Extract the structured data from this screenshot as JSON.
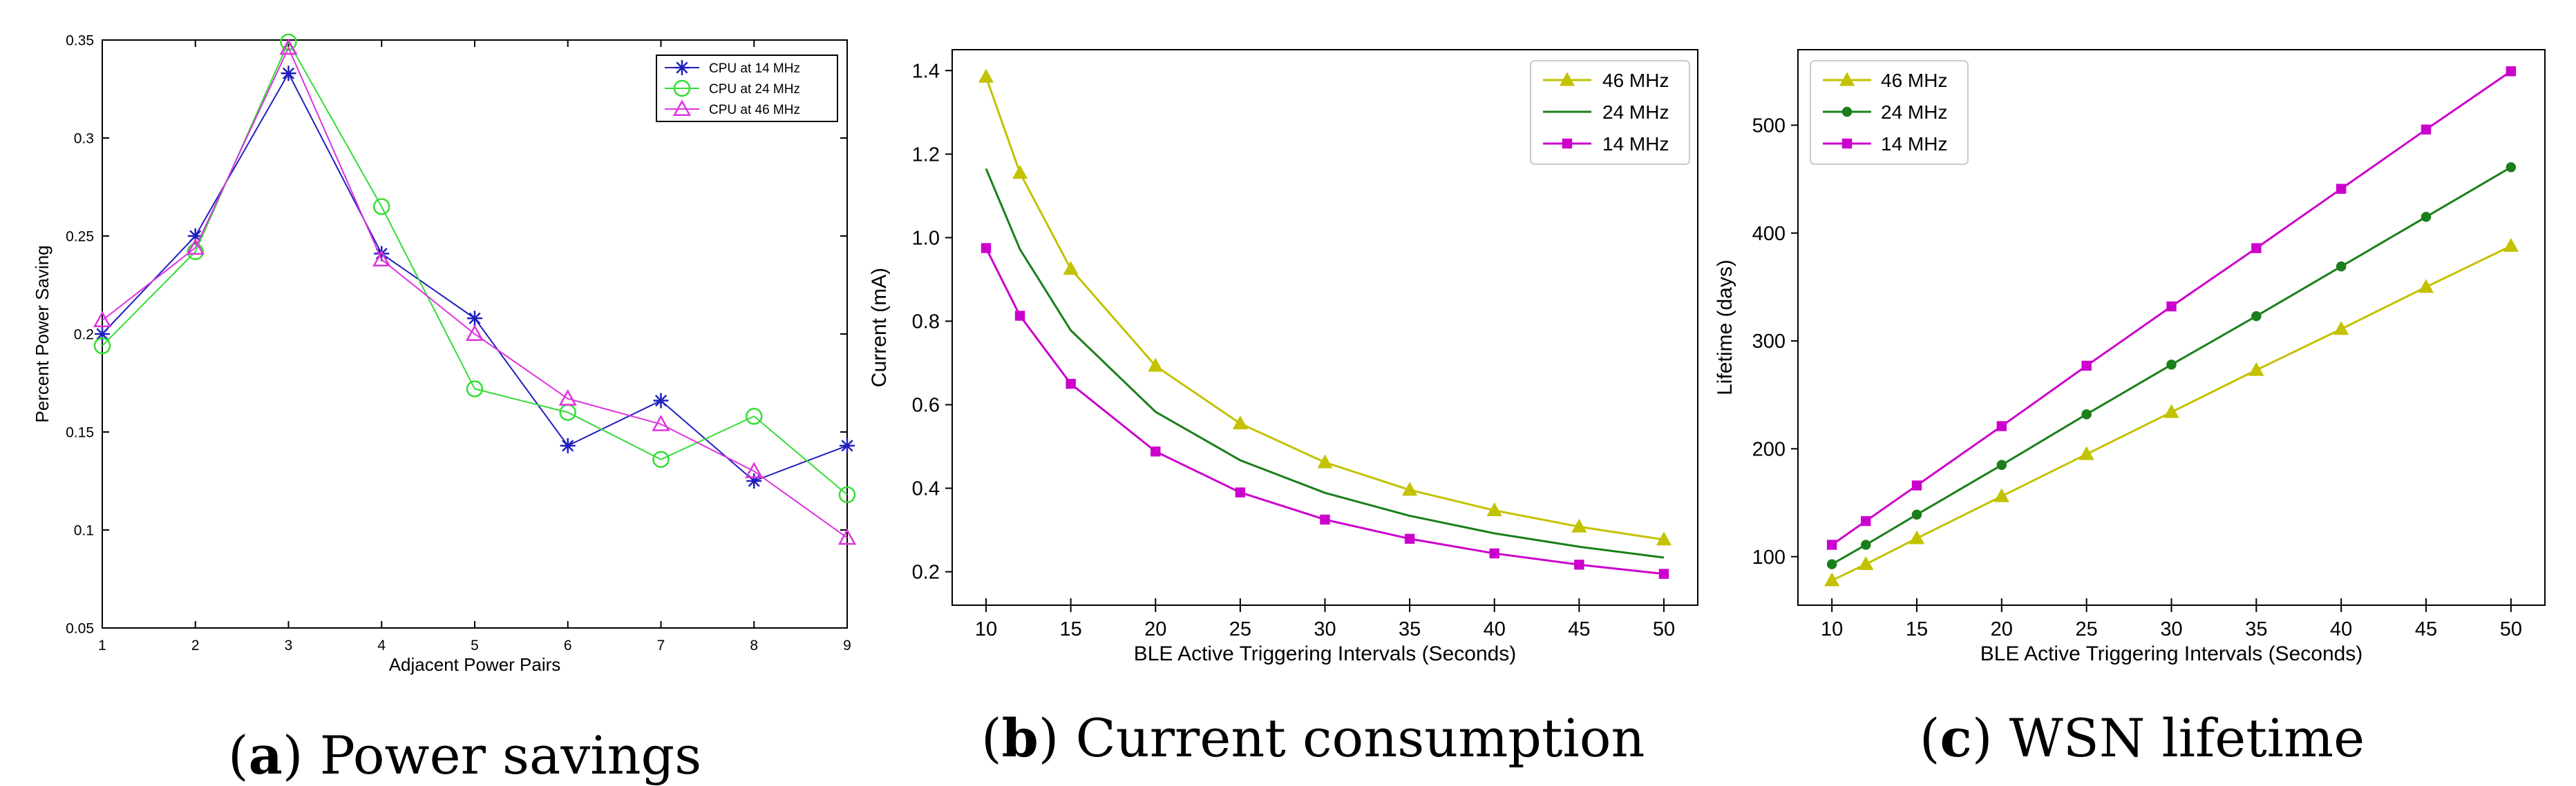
{
  "chart_data": [
    {
      "type": "line",
      "title": "",
      "xlabel": "Adjacent Power Pairs",
      "ylabel": "Percent Power Saving",
      "xlim": [
        1,
        9
      ],
      "ylim": [
        0.05,
        0.35
      ],
      "xticks": [
        1,
        2,
        3,
        4,
        5,
        6,
        7,
        8,
        9
      ],
      "yticks": [
        0.05,
        0.1,
        0.15,
        0.2,
        0.25,
        0.3,
        0.35
      ],
      "ytick_labels": [
        "0.05",
        "0.1",
        "0.15",
        "0.2",
        "0.25",
        "0.3",
        "0.35"
      ],
      "grid": false,
      "legend": "top-right",
      "x": [
        1,
        2,
        3,
        4,
        5,
        6,
        7,
        8,
        9
      ],
      "series": [
        {
          "name": "CPU at 14 MHz",
          "color": "#1f1fbf",
          "marker": "star",
          "values": [
            0.2,
            0.25,
            0.333,
            0.241,
            0.208,
            0.143,
            0.166,
            0.125,
            0.143
          ]
        },
        {
          "name": "CPU at 24 MHz",
          "color": "#33dd33",
          "marker": "circle",
          "values": [
            0.194,
            0.242,
            0.349,
            0.265,
            0.172,
            0.16,
            0.136,
            0.158,
            0.118
          ]
        },
        {
          "name": "CPU at 46 MHz",
          "color": "#dd33dd",
          "marker": "triangle",
          "values": [
            0.207,
            0.244,
            0.346,
            0.238,
            0.2,
            0.167,
            0.154,
            0.13,
            0.096
          ]
        }
      ],
      "caption": {
        "letter": "a",
        "open": "(",
        "close": ")",
        "text": " Power savings"
      }
    },
    {
      "type": "line",
      "title": "",
      "xlabel": "BLE Active Triggering Intervals (Seconds)",
      "ylabel": "Current (mA)",
      "xlim": [
        8,
        52
      ],
      "ylim": [
        0.12,
        1.45
      ],
      "xticks": [
        10,
        15,
        20,
        25,
        30,
        35,
        40,
        45,
        50
      ],
      "yticks": [
        0.2,
        0.4,
        0.6,
        0.8,
        1.0,
        1.2,
        1.4
      ],
      "ytick_labels": [
        "0.2",
        "0.4",
        "0.6",
        "0.8",
        "1.0",
        "1.2",
        "1.4"
      ],
      "grid": false,
      "legend": "top-right",
      "x": [
        10,
        12,
        15,
        20,
        25,
        30,
        35,
        40,
        45,
        50
      ],
      "series": [
        {
          "name": "46 MHz",
          "color": "#c2c200",
          "marker": "triangle",
          "values": [
            1.385,
            1.155,
            0.925,
            0.693,
            0.555,
            0.462,
            0.396,
            0.347,
            0.308,
            0.277
          ]
        },
        {
          "name": "24 MHz",
          "color": "#1a7f1a",
          "marker": "none",
          "values": [
            1.165,
            0.972,
            0.778,
            0.583,
            0.467,
            0.389,
            0.334,
            0.292,
            0.26,
            0.234
          ]
        },
        {
          "name": "14 MHz",
          "color": "#cc00cc",
          "marker": "square",
          "values": [
            0.975,
            0.813,
            0.65,
            0.488,
            0.39,
            0.325,
            0.279,
            0.244,
            0.217,
            0.195
          ]
        }
      ],
      "caption": {
        "letter": "b",
        "open": "(",
        "close": ")",
        "text": " Current consumption"
      }
    },
    {
      "type": "line",
      "title": "",
      "xlabel": "BLE Active Triggering Intervals (Seconds)",
      "ylabel": "Lifetime (days)",
      "xlim": [
        8,
        52
      ],
      "ylim": [
        55,
        570
      ],
      "xticks": [
        10,
        15,
        20,
        25,
        30,
        35,
        40,
        45,
        50
      ],
      "yticks": [
        100,
        200,
        300,
        400,
        500
      ],
      "ytick_labels": [
        "100",
        "200",
        "300",
        "400",
        "500"
      ],
      "grid": false,
      "legend": "top-left",
      "x": [
        10,
        12,
        15,
        20,
        25,
        30,
        35,
        40,
        45,
        50
      ],
      "series": [
        {
          "name": "46 MHz",
          "color": "#c2c200",
          "marker": "triangle",
          "values": [
            78,
            93,
            117,
            156,
            195,
            234,
            273,
            311,
            350,
            388
          ]
        },
        {
          "name": "24 MHz",
          "color": "#1a7f1a",
          "marker": "dot",
          "values": [
            93,
            111,
            139,
            185,
            232,
            278,
            323,
            369,
            415,
            461
          ]
        },
        {
          "name": "14 MHz",
          "color": "#cc00cc",
          "marker": "square",
          "values": [
            111,
            133,
            166,
            221,
            277,
            332,
            386,
            441,
            496,
            550
          ]
        }
      ],
      "caption": {
        "letter": "c",
        "open": "(",
        "close": ")",
        "text": " WSN lifetime"
      }
    }
  ]
}
